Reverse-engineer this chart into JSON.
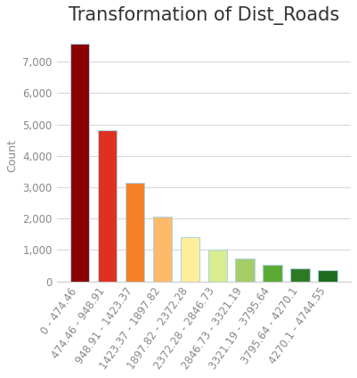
{
  "title": "Transformation of Dist_Roads",
  "ylabel": "Count",
  "categories": [
    "0 - 474.46",
    "474.46 - 948.91",
    "948.91 - 1423.37",
    "1423.37 - 1897.82",
    "1897.82 - 2372.28",
    "2372.28 - 2846.73",
    "2846.73 - 3321.19",
    "3321.19 - 3795.64",
    "3795.64 - 4270.1",
    "4270.1 - 4744.55"
  ],
  "values": [
    7580,
    4830,
    3150,
    2060,
    1420,
    1010,
    720,
    530,
    400,
    360
  ],
  "bar_colors": [
    "#8B0000",
    "#E03020",
    "#F4812A",
    "#FCBA6A",
    "#FEEE99",
    "#D8EC90",
    "#A8CC68",
    "#5BAA32",
    "#2E7A24",
    "#1E6B1E"
  ],
  "bar_edge_color": "#aed4e8",
  "bar_edge_width": 0.8,
  "ylim": [
    0,
    8000
  ],
  "yticks": [
    0,
    1000,
    2000,
    3000,
    4000,
    5000,
    6000,
    7000
  ],
  "background_color": "#ffffff",
  "grid_color": "#d8d8d8",
  "title_fontsize": 15,
  "label_fontsize": 9,
  "tick_fontsize": 8.5,
  "tick_color": "#888888"
}
